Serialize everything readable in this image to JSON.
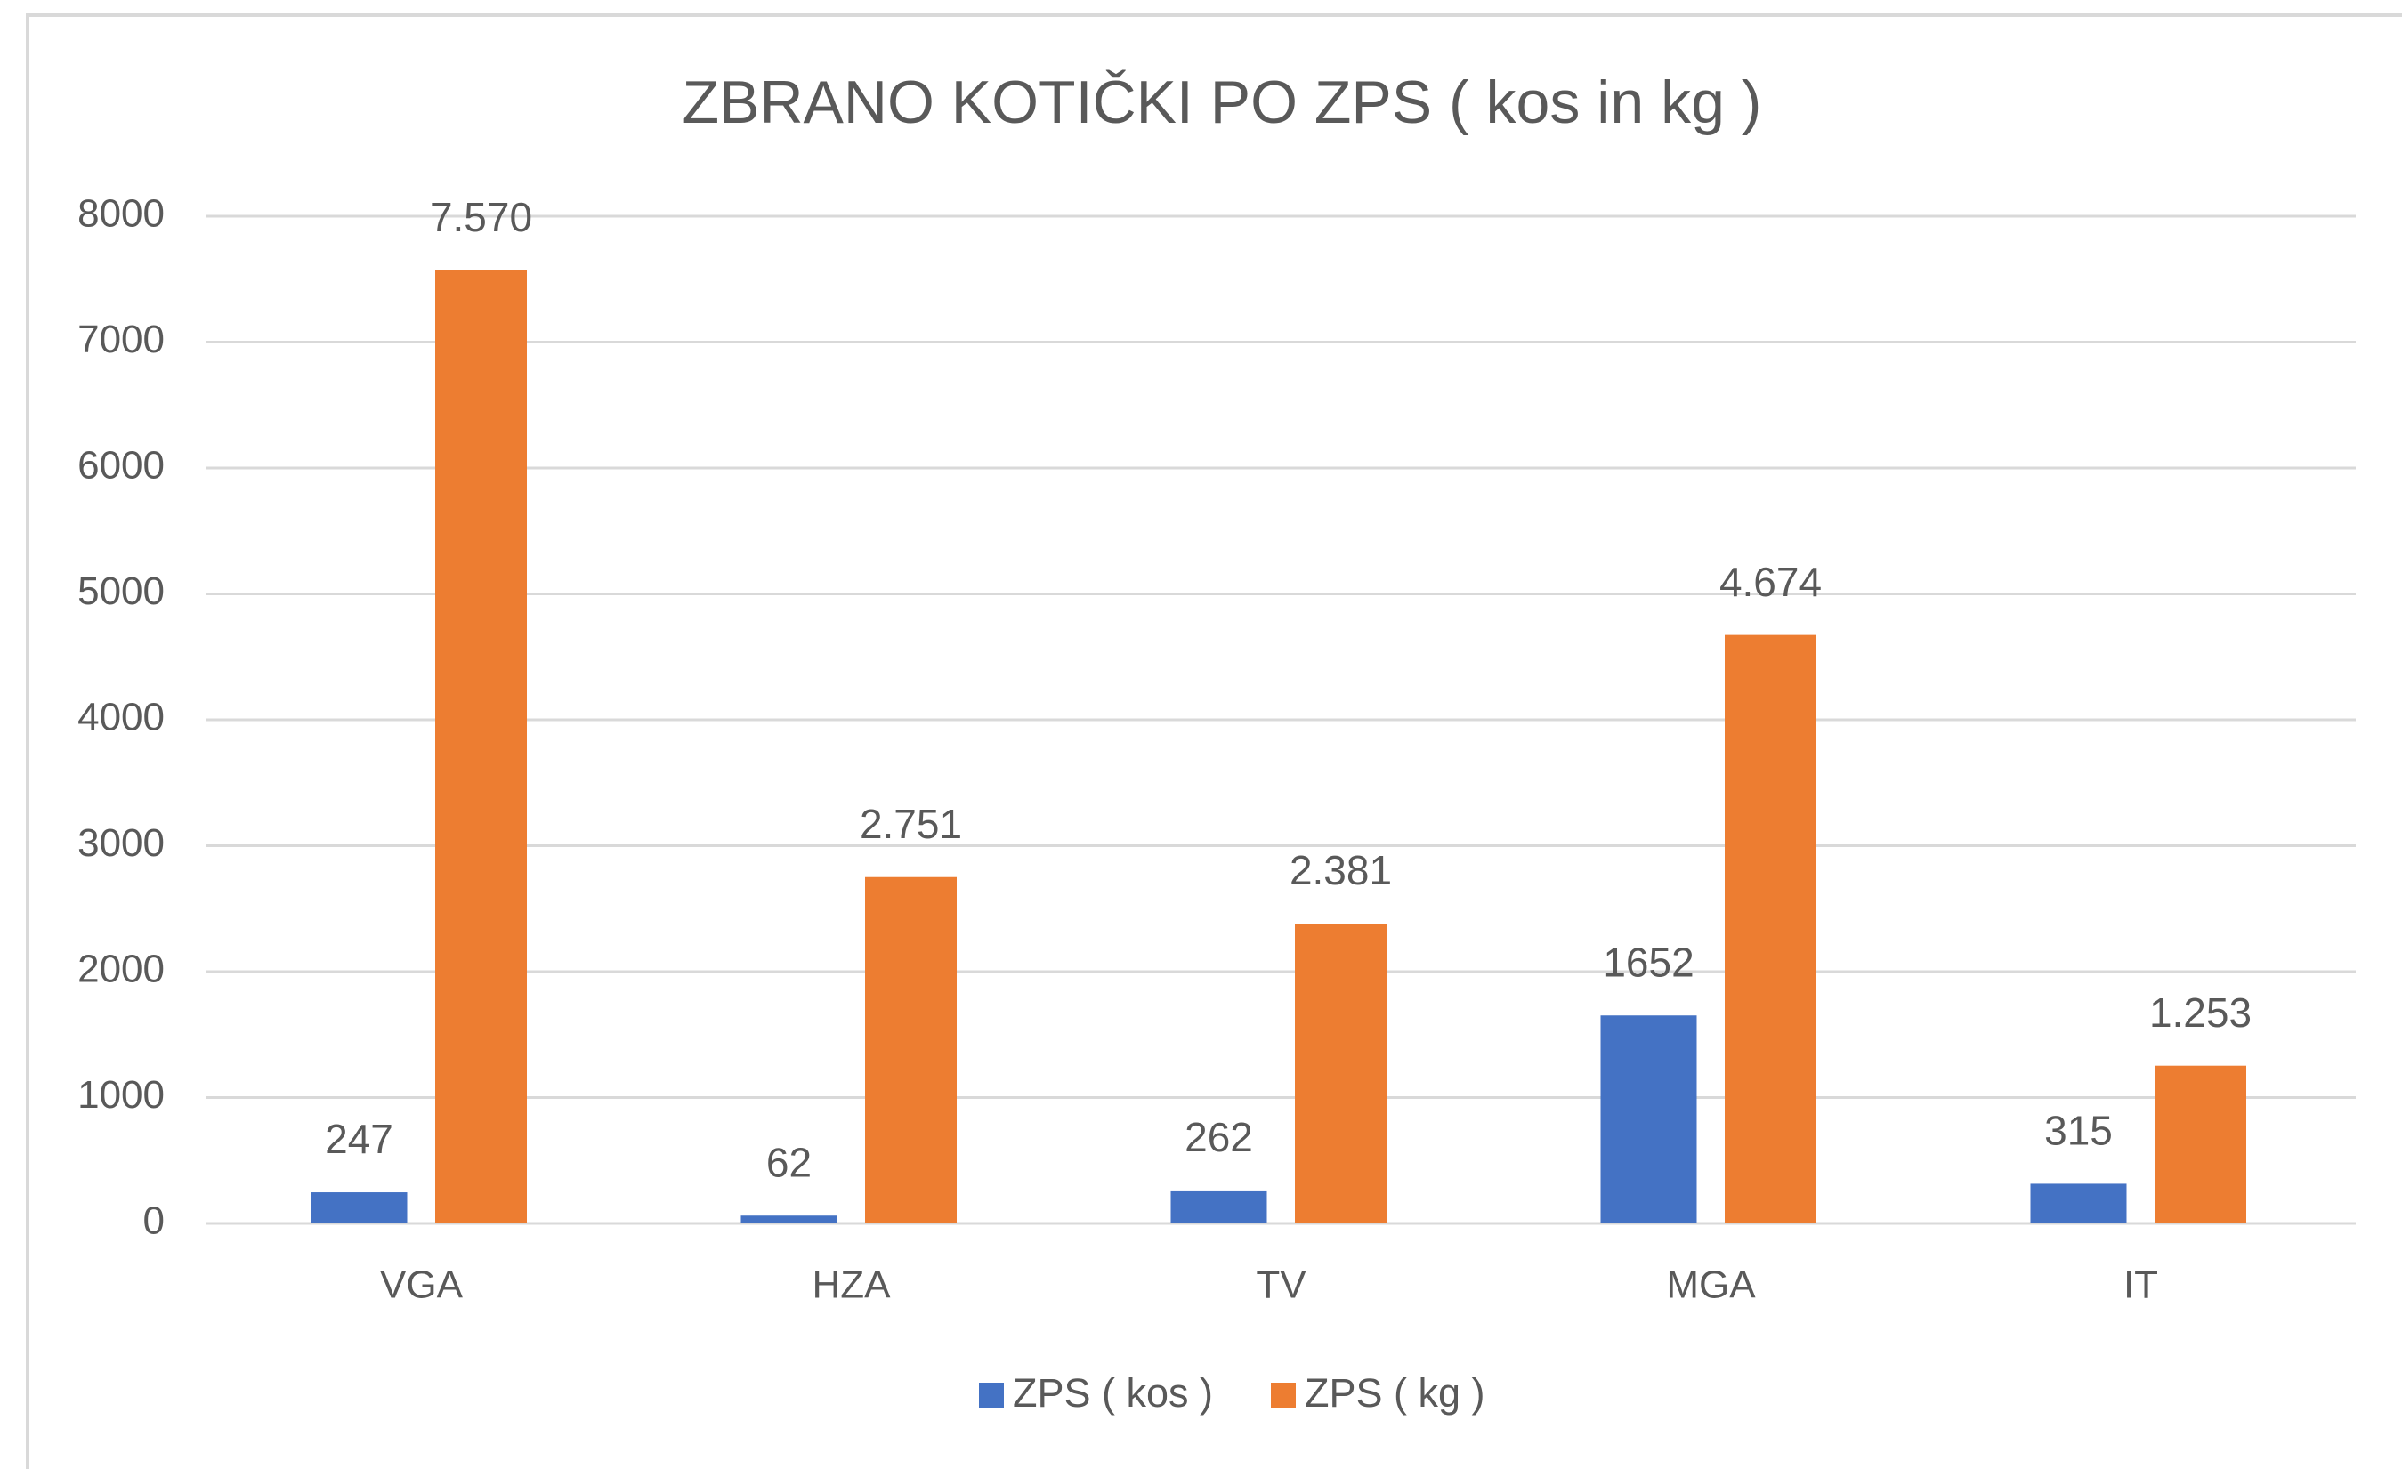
{
  "chart_data": {
    "type": "bar",
    "title": "ZBRANO KOTIČKI PO ZPS ( kos in kg )",
    "categories": [
      "VGA",
      "HZA",
      "TV",
      "MGA",
      "IT"
    ],
    "series": [
      {
        "name": "ZPS ( kos )",
        "color": "#4472c4",
        "values": [
          247,
          62,
          262,
          1652,
          315
        ]
      },
      {
        "name": "ZPS ( kg )",
        "color": "#ed7d31",
        "values": [
          7570,
          2751,
          2381,
          4674,
          1253
        ],
        "value_labels": [
          "7.570",
          "2.751",
          "2.381",
          "4.674",
          "1.253"
        ]
      }
    ],
    "ylim": [
      0,
      8000
    ],
    "yticks": [
      0,
      1000,
      2000,
      3000,
      4000,
      5000,
      6000,
      7000,
      8000
    ],
    "grid": true,
    "legend": "bottom"
  }
}
